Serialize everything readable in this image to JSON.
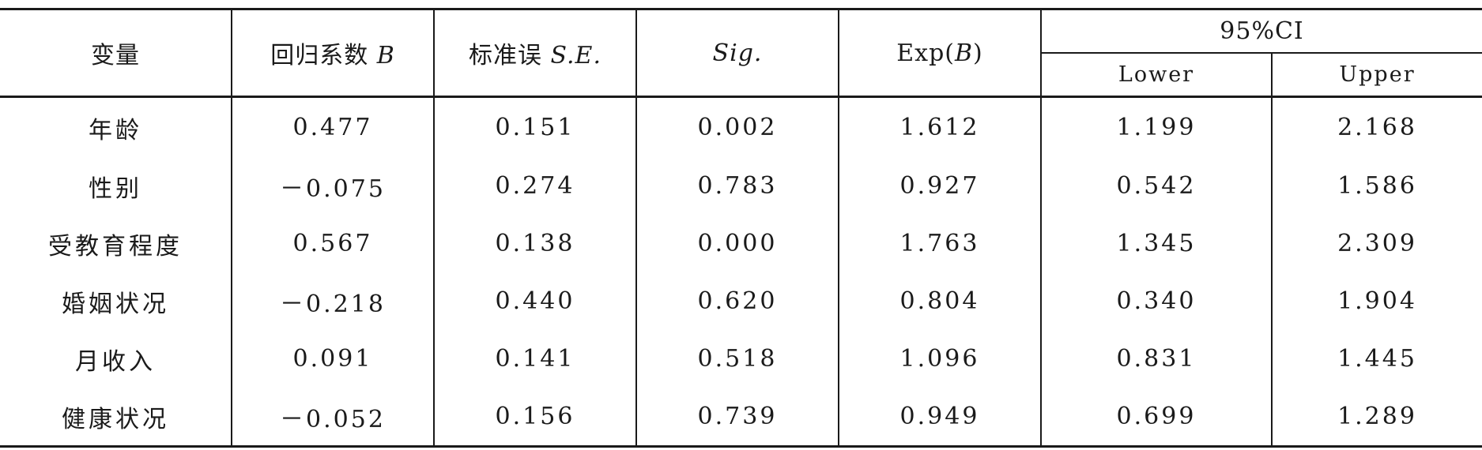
{
  "table": {
    "headers": {
      "variable": "变量",
      "coef_prefix": "回归系数 ",
      "coef_symbol": "B",
      "se_prefix": "标准误 ",
      "se_symbol": "S.E.",
      "sig": "Sig.",
      "exp_prefix": "Exp(",
      "exp_symbol": "B",
      "exp_suffix": ")",
      "ci": "95%CI",
      "lower": "Lower",
      "upper": "Upper"
    },
    "rows": [
      {
        "variable": "年龄",
        "B": "0.477",
        "SE": "0.151",
        "Sig": "0.002",
        "ExpB": "1.612",
        "Lower": "1.199",
        "Upper": "2.168"
      },
      {
        "variable": "性别",
        "B": "－0.075",
        "SE": "0.274",
        "Sig": "0.783",
        "ExpB": "0.927",
        "Lower": "0.542",
        "Upper": "1.586"
      },
      {
        "variable": "受教育程度",
        "B": "0.567",
        "SE": "0.138",
        "Sig": "0.000",
        "ExpB": "1.763",
        "Lower": "1.345",
        "Upper": "2.309"
      },
      {
        "variable": "婚姻状况",
        "B": "－0.218",
        "SE": "0.440",
        "Sig": "0.620",
        "ExpB": "0.804",
        "Lower": "0.340",
        "Upper": "1.904"
      },
      {
        "variable": "月收入",
        "B": "0.091",
        "SE": "0.141",
        "Sig": "0.518",
        "ExpB": "1.096",
        "Lower": "0.831",
        "Upper": "1.445"
      },
      {
        "variable": "健康状况",
        "B": "－0.052",
        "SE": "0.156",
        "Sig": "0.739",
        "ExpB": "0.949",
        "Lower": "0.699",
        "Upper": "1.289"
      }
    ]
  }
}
